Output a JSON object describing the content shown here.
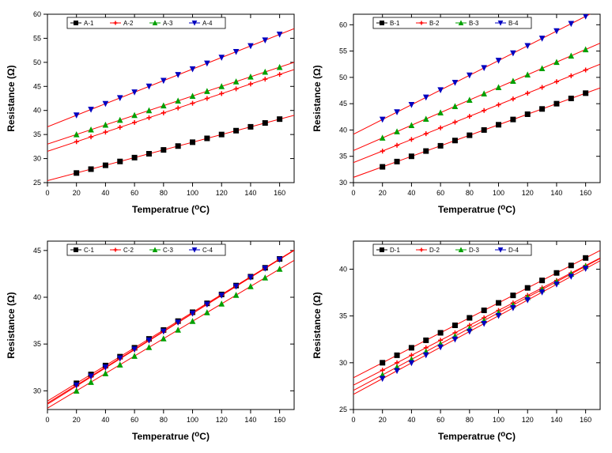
{
  "global": {
    "xlabel": "Temperatrue (°C)",
    "ylabel": "Resistance (Ω)",
    "label_fontsize": 12,
    "tick_fontsize": 9,
    "legend_fontsize": 8,
    "background_color": "#ffffff",
    "axis_color": "#000000",
    "line_color_fit": "#ff0000",
    "series_marker_colors": [
      "#000000",
      "#ff0000",
      "#00a000",
      "#0000c0"
    ],
    "series_markers": [
      "square",
      "plus",
      "triangle-up",
      "triangle-down"
    ],
    "xlim": [
      0,
      170
    ],
    "xtick_step": 20,
    "xticks": [
      0,
      20,
      40,
      60,
      80,
      100,
      120,
      140,
      160
    ],
    "marker_size": 3,
    "line_width": 1
  },
  "panels": [
    {
      "id": "A",
      "legend": [
        "A-1",
        "A-2",
        "A-3",
        "A-4"
      ],
      "ylim": [
        25,
        60
      ],
      "ytick_step": 5,
      "yticks": [
        25,
        30,
        35,
        40,
        45,
        50,
        55,
        60
      ],
      "series": [
        {
          "x": [
            20,
            30,
            40,
            50,
            60,
            70,
            80,
            90,
            100,
            110,
            120,
            130,
            140,
            150,
            160
          ],
          "y": [
            27,
            27.8,
            28.6,
            29.4,
            30.2,
            31.0,
            31.8,
            32.6,
            33.4,
            34.2,
            35.0,
            35.8,
            36.6,
            37.4,
            38.2
          ]
        },
        {
          "x": [
            20,
            30,
            40,
            50,
            60,
            70,
            80,
            90,
            100,
            110,
            120,
            130,
            140,
            150,
            160
          ],
          "y": [
            33.5,
            34.5,
            35.5,
            36.5,
            37.5,
            38.5,
            39.5,
            40.5,
            41.5,
            42.5,
            43.5,
            44.5,
            45.5,
            46.5,
            47.5
          ]
        },
        {
          "x": [
            20,
            30,
            40,
            50,
            60,
            70,
            80,
            90,
            100,
            110,
            120,
            130,
            140,
            150,
            160
          ],
          "y": [
            35,
            36,
            37,
            38,
            39,
            40,
            41,
            42,
            43,
            44,
            45,
            46,
            47,
            48,
            49
          ]
        },
        {
          "x": [
            20,
            30,
            40,
            50,
            60,
            70,
            80,
            90,
            100,
            110,
            120,
            130,
            140,
            150,
            160
          ],
          "y": [
            39,
            40.2,
            41.4,
            42.6,
            43.8,
            45.0,
            46.2,
            47.4,
            48.6,
            49.8,
            51.0,
            52.2,
            53.4,
            54.6,
            55.8
          ]
        }
      ]
    },
    {
      "id": "B",
      "legend": [
        "B-1",
        "B-2",
        "B-3",
        "B-4"
      ],
      "ylim": [
        30,
        62
      ],
      "ytick_step": 5,
      "yticks": [
        30,
        35,
        40,
        45,
        50,
        55,
        60
      ],
      "series": [
        {
          "x": [
            20,
            30,
            40,
            50,
            60,
            70,
            80,
            90,
            100,
            110,
            120,
            130,
            140,
            150,
            160
          ],
          "y": [
            33,
            34,
            35,
            36,
            37,
            38,
            39,
            40,
            41,
            42,
            43,
            44,
            45,
            46,
            47
          ]
        },
        {
          "x": [
            20,
            30,
            40,
            50,
            60,
            70,
            80,
            90,
            100,
            110,
            120,
            130,
            140,
            150,
            160
          ],
          "y": [
            36,
            37.1,
            38.2,
            39.3,
            40.4,
            41.5,
            42.6,
            43.7,
            44.8,
            45.9,
            47.0,
            48.1,
            49.2,
            50.3,
            51.4
          ]
        },
        {
          "x": [
            20,
            30,
            40,
            50,
            60,
            70,
            80,
            90,
            100,
            110,
            120,
            130,
            140,
            150,
            160
          ],
          "y": [
            38.5,
            39.7,
            40.9,
            42.1,
            43.3,
            44.5,
            45.7,
            46.9,
            48.1,
            49.3,
            50.5,
            51.7,
            52.9,
            54.1,
            55.3
          ]
        },
        {
          "x": [
            20,
            30,
            40,
            50,
            60,
            70,
            80,
            90,
            100,
            110,
            120,
            130,
            140,
            150,
            160
          ],
          "y": [
            42,
            43.4,
            44.8,
            46.2,
            47.6,
            49.0,
            50.4,
            51.8,
            53.2,
            54.6,
            56.0,
            57.4,
            58.8,
            60.2,
            61.6
          ]
        }
      ]
    },
    {
      "id": "C",
      "legend": [
        "C-1",
        "C-2",
        "C-3",
        "C-4"
      ],
      "ylim": [
        28,
        46
      ],
      "ytick_step": 5,
      "yticks": [
        30,
        35,
        40,
        45
      ],
      "series": [
        {
          "x": [
            20,
            30,
            40,
            50,
            60,
            70,
            80,
            90,
            100,
            110,
            120,
            130,
            140,
            150,
            160
          ],
          "y": [
            30.8,
            31.75,
            32.7,
            33.65,
            34.6,
            35.55,
            36.5,
            37.45,
            38.4,
            39.35,
            40.3,
            41.25,
            42.2,
            43.15,
            44.1
          ]
        },
        {
          "x": [
            20,
            30,
            40,
            50,
            60,
            70,
            80,
            90,
            100,
            110,
            120,
            130,
            140,
            150,
            160
          ],
          "y": [
            30.5,
            31.47,
            32.44,
            33.41,
            34.38,
            35.35,
            36.32,
            37.29,
            38.26,
            39.23,
            40.2,
            41.17,
            42.14,
            43.11,
            44.08
          ]
        },
        {
          "x": [
            20,
            30,
            40,
            50,
            60,
            70,
            80,
            90,
            100,
            110,
            120,
            130,
            140,
            150,
            160
          ],
          "y": [
            30.0,
            30.93,
            31.86,
            32.79,
            33.72,
            34.65,
            35.58,
            36.51,
            37.44,
            38.37,
            39.3,
            40.23,
            41.16,
            42.09,
            43.02
          ]
        },
        {
          "x": [
            20,
            30,
            40,
            50,
            60,
            70,
            80,
            90,
            100,
            110,
            120,
            130,
            140,
            150,
            160
          ],
          "y": [
            30.6,
            31.56,
            32.52,
            33.48,
            34.44,
            35.4,
            36.36,
            37.32,
            38.28,
            39.24,
            40.2,
            41.16,
            42.12,
            43.08,
            44.04
          ]
        }
      ]
    },
    {
      "id": "D",
      "legend": [
        "D-1",
        "D-2",
        "D-3",
        "D-4"
      ],
      "ylim": [
        25,
        43
      ],
      "ytick_step": 5,
      "yticks": [
        25,
        30,
        35,
        40
      ],
      "series": [
        {
          "x": [
            20,
            30,
            40,
            50,
            60,
            70,
            80,
            90,
            100,
            110,
            120,
            130,
            140,
            150,
            160
          ],
          "y": [
            30,
            30.8,
            31.6,
            32.4,
            33.2,
            34.0,
            34.8,
            35.6,
            36.4,
            37.2,
            38.0,
            38.8,
            39.6,
            40.4,
            41.2
          ]
        },
        {
          "x": [
            20,
            30,
            40,
            50,
            60,
            70,
            80,
            90,
            100,
            110,
            120,
            130,
            140,
            150,
            160
          ],
          "y": [
            29.2,
            30.0,
            30.8,
            31.6,
            32.4,
            33.2,
            34.0,
            34.8,
            35.6,
            36.4,
            37.2,
            38.0,
            38.8,
            39.6,
            40.4
          ]
        },
        {
          "x": [
            20,
            30,
            40,
            50,
            60,
            70,
            80,
            90,
            100,
            110,
            120,
            130,
            140,
            150,
            160
          ],
          "y": [
            28.7,
            29.53,
            30.36,
            31.19,
            32.02,
            32.85,
            33.68,
            34.51,
            35.34,
            36.17,
            37.0,
            37.83,
            38.66,
            39.49,
            40.32
          ]
        },
        {
          "x": [
            20,
            30,
            40,
            50,
            60,
            70,
            80,
            90,
            100,
            110,
            120,
            130,
            140,
            150,
            160
          ],
          "y": [
            28.3,
            29.14,
            29.98,
            30.82,
            31.66,
            32.5,
            33.34,
            34.18,
            35.02,
            35.86,
            36.7,
            37.54,
            38.38,
            39.22,
            40.06
          ]
        }
      ]
    }
  ]
}
